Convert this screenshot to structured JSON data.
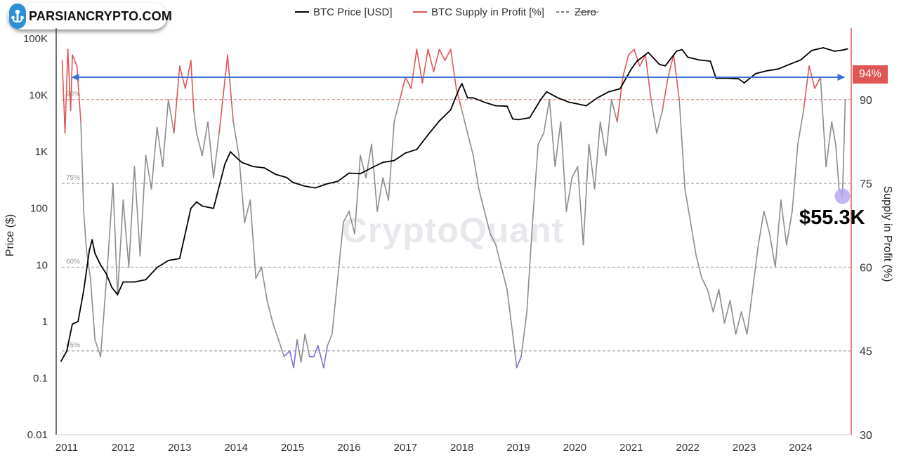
{
  "logo": {
    "text": "PARSIANCRYPTO.COM"
  },
  "watermark": "CryptoQuant",
  "badge": {
    "label": "94%"
  },
  "callout": {
    "price_text": "$55.3K"
  },
  "colors": {
    "price": "#000000",
    "supply_gray": "#8c8c91",
    "supply_red": "#e05555",
    "supply_purple": "#7b6fd8",
    "zero": "#7a7f8c",
    "arrow": "#3a6fd8"
  },
  "chart_data": {
    "type": "line",
    "title": "",
    "legend": [
      {
        "label": "BTC Price [USD]",
        "style": "solid",
        "color": "#000000"
      },
      {
        "label": "BTC Supply in Profit [%]",
        "style": "solid",
        "color": "#e05555"
      },
      {
        "label": "Zero",
        "style": "dashed",
        "color": "#7a7f8c"
      }
    ],
    "x_ticks": [
      "2011",
      "2012",
      "2013",
      "2014",
      "2015",
      "2016",
      "2017",
      "2018",
      "2019",
      "2020",
      "2021",
      "2022",
      "2023",
      "2024"
    ],
    "xlim": [
      2010.83,
      2024.83
    ],
    "left_axis": {
      "label": "Price ($)",
      "scale": "log",
      "ylim": [
        0.01,
        100000
      ],
      "ticks": [
        "100K",
        "10K",
        "1K",
        "100",
        "10",
        "1",
        "0.1",
        "0.01"
      ]
    },
    "right_axis": {
      "label": "Supply in Profit (%)",
      "ylim": [
        30,
        101
      ],
      "ticks": [
        "90",
        "75",
        "60",
        "45",
        "30"
      ]
    },
    "reference_lines": [
      {
        "value": 90,
        "label": "90%",
        "color": "#e07070"
      },
      {
        "value": 75,
        "label": "75%",
        "color": "#999999"
      },
      {
        "value": 60,
        "label": "60%",
        "color": "#999999"
      },
      {
        "value": 45,
        "label": "45%",
        "color": "#7a7f8c"
      }
    ],
    "arrow": {
      "value": 94,
      "from": 2011.08,
      "to": 2024.79
    },
    "highlight_point": {
      "x": 2024.74,
      "value": 72.7
    },
    "series": [
      {
        "name": "BTC Price [USD]",
        "axis": "left",
        "x": [
          2010.9,
          2011.0,
          2011.1,
          2011.2,
          2011.3,
          2011.4,
          2011.45,
          2011.5,
          2011.6,
          2011.7,
          2011.8,
          2011.9,
          2012.0,
          2012.2,
          2012.4,
          2012.6,
          2012.8,
          2013.0,
          2013.2,
          2013.3,
          2013.4,
          2013.6,
          2013.8,
          2013.9,
          2014.0,
          2014.1,
          2014.3,
          2014.5,
          2014.7,
          2014.9,
          2015.0,
          2015.2,
          2015.4,
          2015.6,
          2015.8,
          2016.0,
          2016.2,
          2016.4,
          2016.6,
          2016.8,
          2017.0,
          2017.2,
          2017.4,
          2017.6,
          2017.8,
          2017.95,
          2018.0,
          2018.1,
          2018.2,
          2018.4,
          2018.6,
          2018.8,
          2018.9,
          2019.0,
          2019.2,
          2019.4,
          2019.5,
          2019.7,
          2019.9,
          2020.0,
          2020.2,
          2020.4,
          2020.6,
          2020.8,
          2021.0,
          2021.1,
          2021.3,
          2021.5,
          2021.6,
          2021.8,
          2021.9,
          2022.0,
          2022.2,
          2022.4,
          2022.5,
          2022.7,
          2022.9,
          2023.0,
          2023.2,
          2023.4,
          2023.6,
          2023.8,
          2024.0,
          2024.2,
          2024.4,
          2024.6,
          2024.75,
          2024.83
        ],
        "values": [
          0.2,
          0.3,
          0.9,
          1.0,
          3.5,
          18,
          28,
          16,
          10,
          7,
          4,
          3,
          5,
          5,
          5.5,
          9,
          12,
          13,
          100,
          130,
          110,
          100,
          600,
          1000,
          800,
          650,
          550,
          520,
          400,
          350,
          290,
          250,
          230,
          270,
          300,
          420,
          410,
          520,
          650,
          700,
          950,
          1100,
          2000,
          3500,
          5500,
          13000,
          16000,
          9000,
          9000,
          7500,
          6500,
          6400,
          3800,
          3700,
          4000,
          8500,
          11500,
          9000,
          7500,
          7200,
          6500,
          9000,
          11500,
          13000,
          29000,
          40000,
          57000,
          35000,
          33000,
          60000,
          64000,
          47000,
          42000,
          40000,
          20000,
          20000,
          19500,
          16500,
          24000,
          27000,
          29000,
          35000,
          42000,
          62000,
          69000,
          60000,
          63000,
          66000
        ]
      },
      {
        "name": "BTC Supply in Profit [%]",
        "axis": "right",
        "x": [
          2010.92,
          2010.97,
          2011.02,
          2011.07,
          2011.1,
          2011.18,
          2011.25,
          2011.3,
          2011.35,
          2011.42,
          2011.5,
          2011.6,
          2011.72,
          2011.82,
          2011.9,
          2012.0,
          2012.1,
          2012.2,
          2012.3,
          2012.4,
          2012.5,
          2012.6,
          2012.7,
          2012.8,
          2012.9,
          2013.0,
          2013.1,
          2013.2,
          2013.25,
          2013.3,
          2013.4,
          2013.5,
          2013.6,
          2013.7,
          2013.85,
          2013.95,
          2014.05,
          2014.15,
          2014.25,
          2014.35,
          2014.45,
          2014.55,
          2014.65,
          2014.75,
          2014.85,
          2014.95,
          2015.02,
          2015.08,
          2015.15,
          2015.22,
          2015.3,
          2015.38,
          2015.45,
          2015.55,
          2015.62,
          2015.7,
          2015.8,
          2015.9,
          2016.0,
          2016.1,
          2016.2,
          2016.3,
          2016.4,
          2016.5,
          2016.6,
          2016.7,
          2016.8,
          2016.9,
          2017.0,
          2017.1,
          2017.2,
          2017.3,
          2017.4,
          2017.5,
          2017.6,
          2017.7,
          2017.8,
          2017.9,
          2018.0,
          2018.1,
          2018.2,
          2018.3,
          2018.4,
          2018.5,
          2018.6,
          2018.7,
          2018.8,
          2018.9,
          2018.97,
          2019.05,
          2019.15,
          2019.25,
          2019.35,
          2019.45,
          2019.55,
          2019.65,
          2019.75,
          2019.85,
          2019.95,
          2020.05,
          2020.15,
          2020.25,
          2020.35,
          2020.45,
          2020.55,
          2020.65,
          2020.75,
          2020.85,
          2020.95,
          2021.05,
          2021.15,
          2021.25,
          2021.35,
          2021.45,
          2021.55,
          2021.65,
          2021.75,
          2021.85,
          2021.95,
          2022.05,
          2022.15,
          2022.25,
          2022.35,
          2022.45,
          2022.55,
          2022.65,
          2022.75,
          2022.85,
          2022.95,
          2023.05,
          2023.15,
          2023.25,
          2023.35,
          2023.45,
          2023.55,
          2023.65,
          2023.75,
          2023.85,
          2023.95,
          2024.05,
          2024.15,
          2024.25,
          2024.35,
          2024.45,
          2024.55,
          2024.62,
          2024.68,
          2024.74,
          2024.79
        ],
        "values": [
          97,
          84,
          99,
          88,
          98,
          96,
          86,
          70,
          63,
          58,
          47,
          44,
          60,
          75,
          55,
          72,
          60,
          78,
          62,
          80,
          74,
          85,
          78,
          90,
          84,
          96,
          92,
          97,
          88,
          84,
          80,
          86,
          76,
          84,
          98,
          86,
          80,
          68,
          72,
          58,
          60,
          54,
          50,
          47,
          44,
          45,
          42,
          47,
          43,
          48,
          44,
          44,
          46,
          42,
          46,
          48,
          58,
          68,
          70,
          66,
          80,
          76,
          82,
          70,
          76,
          72,
          86,
          90,
          94,
          92,
          99,
          93,
          99,
          95,
          99,
          97,
          99,
          92,
          88,
          84,
          80,
          74,
          70,
          66,
          64,
          60,
          56,
          48,
          42,
          44,
          52,
          68,
          82,
          84,
          90,
          78,
          86,
          70,
          76,
          78,
          64,
          82,
          74,
          86,
          80,
          90,
          86,
          94,
          98,
          99,
          96,
          98,
          90,
          84,
          88,
          94,
          98,
          90,
          74,
          68,
          62,
          58,
          56,
          52,
          56,
          50,
          54,
          48,
          52,
          48,
          56,
          64,
          70,
          66,
          60,
          72,
          64,
          70,
          82,
          88,
          96,
          92,
          94,
          78,
          86,
          82,
          74,
          72.7,
          90
        ]
      }
    ]
  }
}
